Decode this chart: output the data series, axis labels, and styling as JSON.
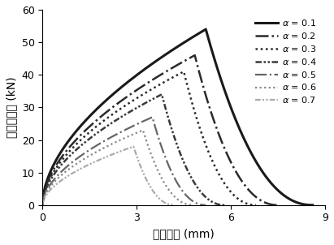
{
  "title": "",
  "xlabel": "实测位移 (mm)",
  "ylabel": "实测外荷载 (kN)",
  "xlim": [
    0,
    9
  ],
  "ylim": [
    0,
    60
  ],
  "xticks": [
    0,
    3,
    6,
    9
  ],
  "yticks": [
    0,
    10,
    20,
    30,
    40,
    50,
    60
  ],
  "series": [
    {
      "alpha_label": "0.1",
      "color": "#1a1a1a",
      "linestyle": "solid",
      "linewidth": 2.2,
      "peak_x": 5.2,
      "peak_y": 54.0,
      "end_x": 8.6,
      "rise_shape": 0.55,
      "fall_shape": 2.2
    },
    {
      "alpha_label": "0.2",
      "color": "#2a2a2a",
      "linestyle": "dashdot",
      "linewidth": 1.8,
      "peak_x": 4.85,
      "peak_y": 46.0,
      "end_x": 7.5,
      "rise_shape": 0.55,
      "fall_shape": 2.2
    },
    {
      "alpha_label": "0.3",
      "color": "#2a2a2a",
      "linestyle": "dotted",
      "linewidth": 1.8,
      "peak_x": 4.5,
      "peak_y": 41.0,
      "end_x": 6.8,
      "rise_shape": 0.55,
      "fall_shape": 2.2
    },
    {
      "alpha_label": "0.4",
      "color": "#3a3a3a",
      "linestyle": "dashdotdotted",
      "linewidth": 1.8,
      "peak_x": 3.8,
      "peak_y": 34.0,
      "end_x": 5.8,
      "rise_shape": 0.55,
      "fall_shape": 2.2
    },
    {
      "alpha_label": "0.5",
      "color": "#666666",
      "linestyle": "dashdot",
      "linewidth": 1.6,
      "peak_x": 3.5,
      "peak_y": 27.0,
      "end_x": 5.2,
      "rise_shape": 0.55,
      "fall_shape": 2.2
    },
    {
      "alpha_label": "0.6",
      "color": "#888888",
      "linestyle": "dotted",
      "linewidth": 1.6,
      "peak_x": 3.2,
      "peak_y": 23.0,
      "end_x": 4.8,
      "rise_shape": 0.55,
      "fall_shape": 2.2
    },
    {
      "alpha_label": "0.7",
      "color": "#aaaaaa",
      "linestyle": "dashdotdotted",
      "linewidth": 1.6,
      "peak_x": 2.9,
      "peak_y": 18.0,
      "end_x": 4.2,
      "rise_shape": 0.55,
      "fall_shape": 2.2
    }
  ]
}
